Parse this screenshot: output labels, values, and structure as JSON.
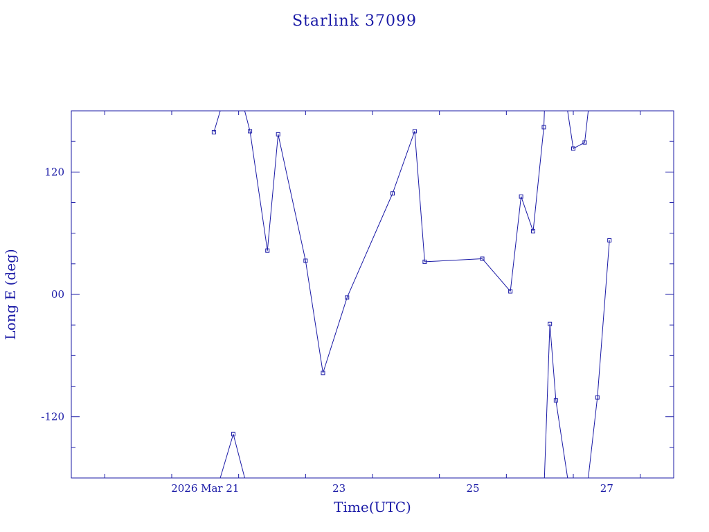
{
  "colors": {
    "ink": "#1a1aa6",
    "background": "#ffffff"
  },
  "chart_data": {
    "type": "line",
    "title": "Starlink 37099",
    "xlabel": "Time(UTC)",
    "ylabel": "Long E (deg)",
    "x_unit": "days (2026 Mar 20 = 20.0)",
    "xlim": [
      19.0,
      28.0
    ],
    "ylim": [
      -180,
      180
    ],
    "wraps_at": [
      -180,
      180
    ],
    "x_major_ticks": [
      21,
      23,
      25,
      27
    ],
    "x_tick_labels": [
      "2026 Mar 21",
      "23",
      "25",
      "27"
    ],
    "y_major_ticks": [
      -120,
      0,
      120
    ],
    "y_tick_labels": [
      "-120",
      "00",
      "120"
    ],
    "grid": false,
    "marker": "square",
    "series": [
      {
        "name": "",
        "points": [
          {
            "x": 21.13,
            "y": 159
          },
          {
            "x": 21.42,
            "y": -137
          },
          {
            "x": 21.67,
            "y": 160
          },
          {
            "x": 21.93,
            "y": 43
          },
          {
            "x": 22.09,
            "y": 157
          },
          {
            "x": 22.5,
            "y": 33
          },
          {
            "x": 22.76,
            "y": -77
          },
          {
            "x": 23.12,
            "y": -3
          },
          {
            "x": 23.8,
            "y": 99
          },
          {
            "x": 24.13,
            "y": 160
          },
          {
            "x": 24.28,
            "y": 32
          },
          {
            "x": 25.14,
            "y": 35
          },
          {
            "x": 25.56,
            "y": 3
          },
          {
            "x": 25.72,
            "y": 96
          },
          {
            "x": 25.9,
            "y": 62
          },
          {
            "x": 26.06,
            "y": 164
          },
          {
            "x": 26.15,
            "y": -29
          },
          {
            "x": 26.24,
            "y": -104
          },
          {
            "x": 26.5,
            "y": 143
          },
          {
            "x": 26.67,
            "y": 149
          },
          {
            "x": 26.86,
            "y": -101
          },
          {
            "x": 27.04,
            "y": 53
          }
        ]
      }
    ]
  }
}
